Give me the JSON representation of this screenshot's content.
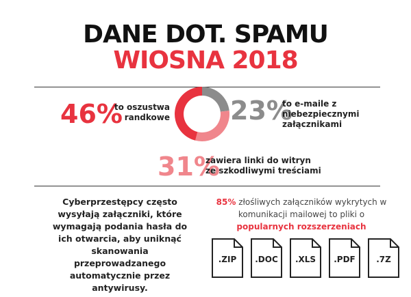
{
  "header": {
    "title": "DANE DOT. SPAMU",
    "subtitle": "WIOSNA 2018"
  },
  "chart_data": {
    "type": "donut",
    "categories": [
      "to oszustwa randkowe",
      "to e-maile z niebezpiecznymi załącznikami",
      "zawiera linki do witryn ze szkodliwymi treściami"
    ],
    "values": [
      46,
      23,
      31
    ],
    "value_labels": [
      "46%",
      "23%",
      "31%"
    ],
    "colors": [
      "#e8333f",
      "#8c8c8c",
      "#f0868c"
    ]
  },
  "left_text": "Cyberprzestępcy często wysyłają załączniki, które wymagają podania hasła do ich otwarcia, aby uniknąć skanowania przeprowadzanego automatycznie przez antywirusy.",
  "right_block": {
    "stat": "85%",
    "text": "złośliwych załączników wykrytych w komunikacji mailowej to pliki o",
    "highlight": "popularnych rozszerzeniach",
    "files": [
      ".ZIP",
      ".DOC",
      ".XLS",
      ".PDF",
      ".7Z"
    ]
  }
}
